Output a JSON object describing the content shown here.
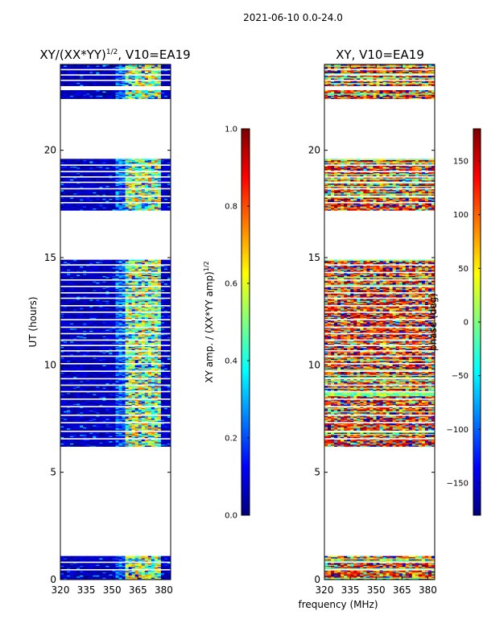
{
  "figure_title": "2021-06-10 0.0-24.0",
  "shared_xlabel": "frequency (MHz)",
  "colors": {
    "jet_stops": [
      "#00007f",
      "#0000ff",
      "#007fff",
      "#00ffff",
      "#7fff7f",
      "#ffff00",
      "#ff7f00",
      "#ff0000",
      "#7f0000"
    ],
    "missing": "#ffffff",
    "axes": "#000000"
  },
  "chart_data": [
    {
      "type": "heatmap",
      "name": "amplitude-ratio",
      "title_main": "XY/(XX*YY)",
      "title_exp": "1/2",
      "title_tail": ", V10=EA19",
      "xlabel": "",
      "ylabel": "UT (hours)",
      "xlim": [
        320,
        384
      ],
      "ylim": [
        0,
        24
      ],
      "xticks": [
        320,
        335,
        350,
        365,
        380
      ],
      "yticks": [
        0,
        5,
        10,
        15,
        20
      ],
      "colorbar": {
        "label_main": "XY amp. / (XX*YY amp)",
        "label_exp": "1/2",
        "range": [
          0.0,
          1.0
        ],
        "ticks": [
          "0.0",
          "0.2",
          "0.4",
          "0.6",
          "0.8",
          "1.0"
        ],
        "tick_values": [
          0.0,
          0.2,
          0.4,
          0.6,
          0.8,
          1.0
        ]
      },
      "data_hours": [
        [
          0.0,
          1.1
        ],
        [
          6.2,
          14.9
        ],
        [
          17.2,
          19.6
        ],
        [
          22.4,
          22.8
        ],
        [
          23.0,
          24.0
        ]
      ],
      "gap_lines": [
        0.45,
        0.8,
        6.55,
        6.9,
        7.3,
        7.65,
        8.05,
        8.4,
        8.75,
        9.05,
        9.35,
        9.7,
        10.05,
        10.4,
        10.65,
        10.9,
        11.15,
        11.45,
        11.75,
        12.1,
        12.45,
        12.75,
        13.1,
        13.35,
        13.65,
        13.95,
        14.3,
        14.65,
        17.55,
        17.85,
        18.2,
        18.5,
        18.75,
        19.0,
        19.3,
        23.25,
        23.5,
        23.75
      ],
      "value_model": "low ~0.0-0.15 below 353 MHz; bright band 0.3-0.8 between 357 and 378 MHz",
      "bright_band_mhz": [
        357,
        378
      ]
    },
    {
      "type": "heatmap",
      "name": "xy-phase",
      "title_main": "XY, V10=EA19",
      "title_exp": "",
      "title_tail": "",
      "xlabel": "",
      "ylabel": "",
      "xlim": [
        320,
        384
      ],
      "ylim": [
        0,
        24
      ],
      "xticks": [
        320,
        335,
        350,
        365,
        380
      ],
      "yticks": [
        0,
        5,
        10,
        15,
        20
      ],
      "colorbar": {
        "label_main": "phase (deg)",
        "label_exp": "",
        "range": [
          -180,
          180
        ],
        "ticks": [
          "−150",
          "−100",
          "−50",
          "0",
          "50",
          "100",
          "150"
        ],
        "tick_values": [
          -150,
          -100,
          -50,
          0,
          50,
          100,
          150
        ]
      },
      "data_hours": [
        [
          0.0,
          1.1
        ],
        [
          6.2,
          14.9
        ],
        [
          17.2,
          19.6
        ],
        [
          22.4,
          22.8
        ],
        [
          23.0,
          24.0
        ]
      ],
      "gap_lines": [
        0.45,
        0.8,
        6.55,
        6.9,
        7.3,
        7.65,
        8.05,
        8.4,
        8.75,
        9.05,
        9.35,
        9.7,
        10.05,
        10.4,
        10.65,
        10.9,
        11.15,
        11.45,
        11.75,
        12.1,
        12.45,
        12.75,
        13.1,
        13.35,
        13.65,
        13.95,
        14.3,
        14.65,
        17.55,
        17.85,
        18.2,
        18.5,
        18.75,
        19.0,
        19.3,
        23.25,
        23.5,
        23.75
      ],
      "value_model": "noisy phase, mostly +60 to +180 deg with blue/cyan patches"
    }
  ]
}
